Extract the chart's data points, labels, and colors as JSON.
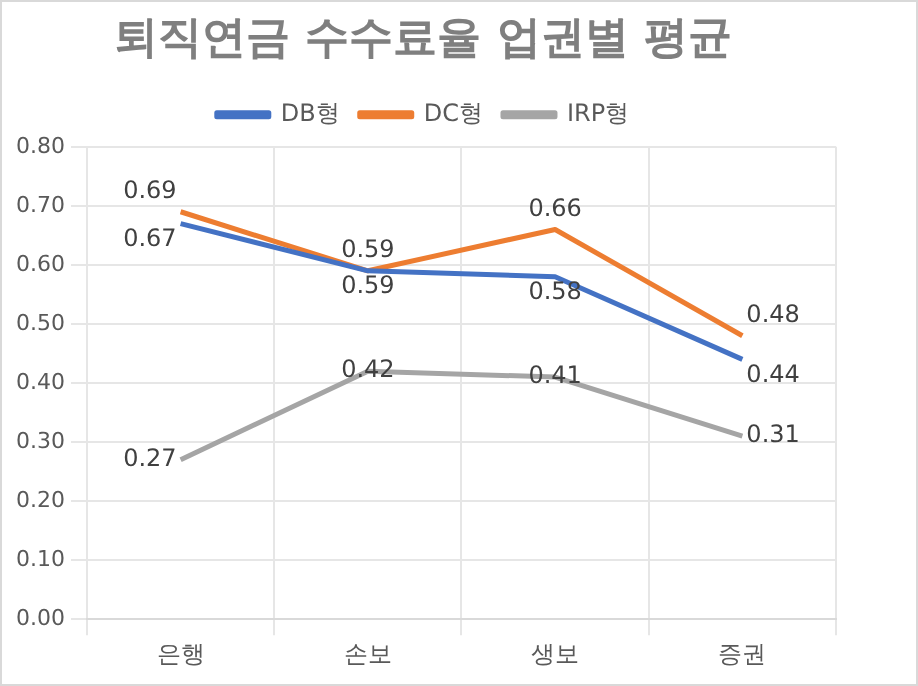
{
  "chart_data": {
    "type": "line",
    "title": "퇴직연금 수수료율 업권별 평균",
    "categories": [
      "은행",
      "손보",
      "생보",
      "증권"
    ],
    "series": [
      {
        "name": "DB형",
        "color": "#4472c4",
        "values": [
          0.67,
          0.59,
          0.58,
          0.44
        ]
      },
      {
        "name": "DC형",
        "color": "#ed7d31",
        "values": [
          0.69,
          0.59,
          0.66,
          0.48
        ]
      },
      {
        "name": "IRP형",
        "color": "#a5a5a5",
        "values": [
          0.27,
          0.42,
          0.41,
          0.31
        ]
      }
    ],
    "ylim": [
      0,
      0.8
    ],
    "yticks": [
      {
        "value": 0,
        "label": "0.00"
      },
      {
        "value": 0.1,
        "label": "0.10"
      },
      {
        "value": 0.2,
        "label": "0.20"
      },
      {
        "value": 0.3,
        "label": "0.30"
      },
      {
        "value": 0.4,
        "label": "0.40"
      },
      {
        "value": 0.5,
        "label": "0.50"
      },
      {
        "value": 0.6,
        "label": "0.60"
      },
      {
        "value": 0.7,
        "label": "0.70"
      },
      {
        "value": 0.8,
        "label": "0.80"
      }
    ],
    "grid": true,
    "legend": "top",
    "marker": "none",
    "line_style": "solid",
    "data_labels": true
  }
}
